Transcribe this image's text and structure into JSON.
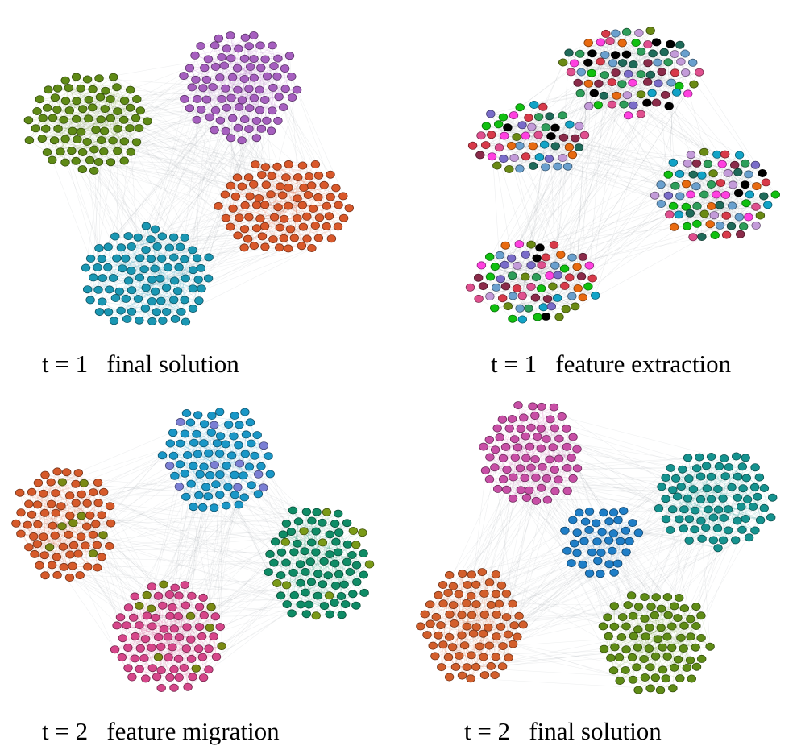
{
  "panels": [
    {
      "caption": "t = 1   final solution",
      "clusters": [
        {
          "color": "#5f8a16",
          "count": 80
        },
        {
          "color": "#a65fbf",
          "count": 85
        },
        {
          "color": "#d9582a",
          "count": 85
        },
        {
          "color": "#1a97b3",
          "count": 88
        }
      ]
    },
    {
      "caption": "t = 1   feature extraction",
      "palette": [
        "#000000",
        "#12a3c7",
        "#1f6b5a",
        "#e0508f",
        "#ff40e0",
        "#8b2b4a",
        "#e86a10",
        "#6a8a14",
        "#c39bd9",
        "#7a6cc9",
        "#2e9e5a",
        "#d83a4a",
        "#6aa0ce",
        "#10c010"
      ],
      "clusters": [
        {
          "count": 55
        },
        {
          "count": 80
        },
        {
          "count": 75
        },
        {
          "count": 70
        }
      ]
    },
    {
      "caption": "t = 2   feature migration",
      "clusters": [
        {
          "color": "#1a97c7",
          "accent": "#7b7fd4",
          "count": 78
        },
        {
          "color": "#d65a2a",
          "accent": "#7a8a14",
          "count": 76
        },
        {
          "color": "#0f8c66",
          "accent": "#7a9a18",
          "count": 82
        },
        {
          "color": "#d6468a",
          "accent": "#7a8a14",
          "count": 84
        }
      ]
    },
    {
      "caption": "t = 2   final solution",
      "clusters": [
        {
          "color": "#c84fa6",
          "count": 70
        },
        {
          "color": "#15938f",
          "count": 78
        },
        {
          "color": "#1f7ec7",
          "count": 40
        },
        {
          "color": "#d35f2c",
          "count": 80
        },
        {
          "color": "#5f8c16",
          "count": 78
        }
      ]
    }
  ]
}
